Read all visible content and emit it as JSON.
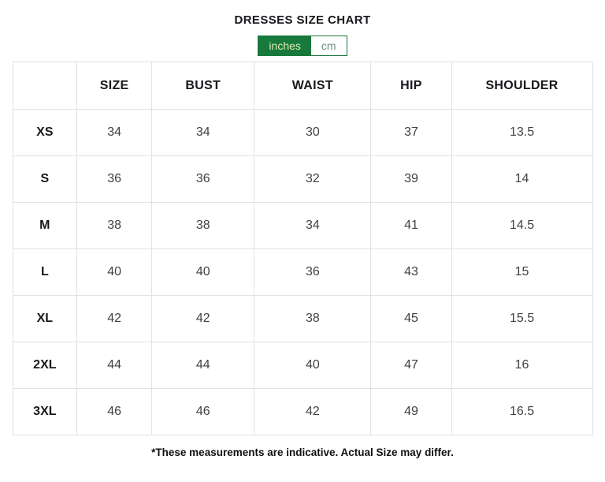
{
  "title": "DRESSES SIZE CHART",
  "unit_toggle": {
    "inches_label": "inches",
    "cm_label": "cm",
    "selected": "inches"
  },
  "size_table": {
    "type": "table",
    "columns": [
      "",
      "SIZE",
      "BUST",
      "WAIST",
      "HIP",
      "SHOULDER"
    ],
    "rows": [
      {
        "size": "XS",
        "values": [
          "34",
          "34",
          "30",
          "37",
          "13.5"
        ]
      },
      {
        "size": "S",
        "values": [
          "36",
          "36",
          "32",
          "39",
          "14"
        ]
      },
      {
        "size": "M",
        "values": [
          "38",
          "38",
          "34",
          "41",
          "14.5"
        ]
      },
      {
        "size": "L",
        "values": [
          "40",
          "40",
          "36",
          "43",
          "15"
        ]
      },
      {
        "size": "XL",
        "values": [
          "42",
          "42",
          "38",
          "45",
          "15.5"
        ]
      },
      {
        "size": "2XL",
        "values": [
          "44",
          "44",
          "40",
          "47",
          "16"
        ]
      },
      {
        "size": "3XL",
        "values": [
          "46",
          "46",
          "42",
          "49",
          "16.5"
        ]
      }
    ]
  },
  "footnote": "*These measurements are indicative. Actual Size may differ.",
  "colors": {
    "accent_green": "#17793c",
    "selected_text": "#ddedb2",
    "unselected_text": "#6f9180",
    "table_border": "#e2e2e2"
  }
}
